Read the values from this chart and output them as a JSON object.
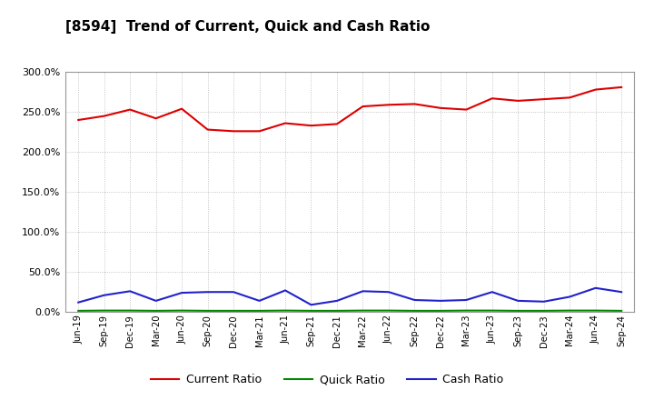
{
  "title": "[8594]  Trend of Current, Quick and Cash Ratio",
  "x_labels": [
    "Jun-19",
    "Sep-19",
    "Dec-19",
    "Mar-20",
    "Jun-20",
    "Sep-20",
    "Dec-20",
    "Mar-21",
    "Jun-21",
    "Sep-21",
    "Dec-21",
    "Mar-22",
    "Jun-22",
    "Sep-22",
    "Dec-22",
    "Mar-23",
    "Jun-23",
    "Sep-23",
    "Dec-23",
    "Mar-24",
    "Jun-24",
    "Sep-24"
  ],
  "current_ratio": [
    240.0,
    245.0,
    253.0,
    242.0,
    254.0,
    228.0,
    226.0,
    226.0,
    236.0,
    233.0,
    235.0,
    257.0,
    259.0,
    260.0,
    255.0,
    253.0,
    267.0,
    264.0,
    266.0,
    268.0,
    278.0,
    281.0
  ],
  "quick_ratio": [
    1.5,
    1.8,
    1.8,
    1.5,
    1.8,
    1.5,
    1.5,
    1.5,
    1.8,
    1.5,
    1.5,
    1.8,
    1.8,
    1.5,
    1.5,
    1.8,
    1.8,
    1.5,
    1.5,
    1.8,
    1.8,
    1.5
  ],
  "cash_ratio": [
    12.0,
    21.0,
    26.0,
    14.0,
    24.0,
    25.0,
    25.0,
    14.0,
    27.0,
    9.0,
    14.0,
    26.0,
    25.0,
    15.0,
    14.0,
    15.0,
    25.0,
    14.0,
    13.0,
    19.0,
    30.0,
    25.0
  ],
  "current_color": "#dd0000",
  "quick_color": "#008800",
  "cash_color": "#2222cc",
  "background_color": "#ffffff",
  "plot_background": "#ffffff",
  "grid_color": "#999999",
  "ylim": [
    0,
    300
  ],
  "yticks": [
    0.0,
    50.0,
    100.0,
    150.0,
    200.0,
    250.0,
    300.0
  ],
  "legend_labels": [
    "Current Ratio",
    "Quick Ratio",
    "Cash Ratio"
  ]
}
